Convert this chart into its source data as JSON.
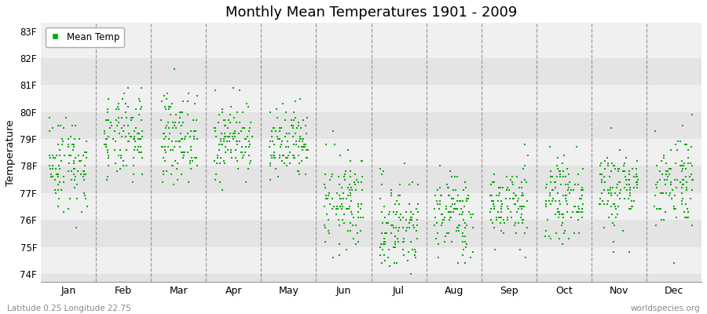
{
  "title": "Monthly Mean Temperatures 1901 - 2009",
  "ylabel": "Temperature",
  "xlabel_labels": [
    "Jan",
    "Feb",
    "Mar",
    "Apr",
    "May",
    "Jun",
    "Jul",
    "Aug",
    "Sep",
    "Oct",
    "Nov",
    "Dec"
  ],
  "ytick_labels": [
    "74F",
    "75F",
    "76F",
    "77F",
    "78F",
    "79F",
    "80F",
    "81F",
    "82F",
    "83F"
  ],
  "ytick_values": [
    74,
    75,
    76,
    77,
    78,
    79,
    80,
    81,
    82,
    83
  ],
  "ylim": [
    73.7,
    83.3
  ],
  "dot_color": "#00AA00",
  "dot_size": 2.5,
  "background_bands": [
    {
      "ymin": 82,
      "ymax": 83.3,
      "color": "#F0F0F0"
    },
    {
      "ymin": 81,
      "ymax": 82,
      "color": "#E4E4E4"
    },
    {
      "ymin": 80,
      "ymax": 81,
      "color": "#F0F0F0"
    },
    {
      "ymin": 79,
      "ymax": 80,
      "color": "#E4E4E4"
    },
    {
      "ymin": 78,
      "ymax": 79,
      "color": "#F0F0F0"
    },
    {
      "ymin": 77,
      "ymax": 78,
      "color": "#E4E4E4"
    },
    {
      "ymin": 76,
      "ymax": 77,
      "color": "#F0F0F0"
    },
    {
      "ymin": 75,
      "ymax": 76,
      "color": "#E4E4E4"
    },
    {
      "ymin": 74,
      "ymax": 75,
      "color": "#F0F0F0"
    },
    {
      "ymin": 73.7,
      "ymax": 74,
      "color": "#E4E4E4"
    }
  ],
  "legend_label": "Mean Temp",
  "footer_left": "Latitude 0.25 Longitude 22.75",
  "footer_right": "worldspecies.org",
  "month_means": [
    78.1,
    79.0,
    79.1,
    79.0,
    78.7,
    76.6,
    75.8,
    76.2,
    76.6,
    76.8,
    77.2,
    77.5
  ],
  "month_stds": [
    0.9,
    0.8,
    0.8,
    0.7,
    0.7,
    0.9,
    0.9,
    0.8,
    0.7,
    0.7,
    0.8,
    0.9
  ],
  "n_years": 109,
  "seed": 42,
  "quantize": 0.1
}
